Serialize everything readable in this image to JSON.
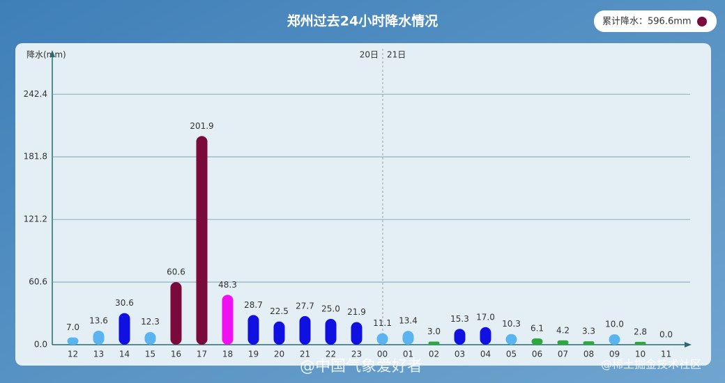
{
  "chart_data": {
    "type": "bar",
    "title": "郑州过去24小时降水情况",
    "total_label": "累计降水：596.6mm",
    "total_color": "#7a0a3c",
    "y_label": "降水(mm)",
    "annotations": [
      "20日",
      "21日"
    ],
    "watermarks": [
      "@中国气象爱好者",
      "@稀土掘金技术社区"
    ],
    "categories": [
      "12",
      "13",
      "14",
      "15",
      "16",
      "17",
      "18",
      "19",
      "20",
      "21",
      "22",
      "23",
      "00",
      "01",
      "02",
      "03",
      "04",
      "05",
      "06",
      "07",
      "08",
      "09",
      "10",
      "11"
    ],
    "values": [
      7.0,
      13.6,
      30.6,
      12.3,
      60.6,
      201.9,
      48.3,
      28.7,
      22.5,
      27.7,
      25.0,
      21.9,
      11.1,
      13.4,
      3.0,
      15.3,
      17.0,
      10.3,
      6.1,
      4.2,
      3.3,
      10.0,
      2.8,
      0
    ],
    "value_labels": [
      "7.0",
      "13.6",
      "30.6",
      "12.3",
      "60.6",
      "201.9",
      "48.3",
      "28.7",
      "22.5",
      "27.7",
      "25.0",
      "21.9",
      "11.1",
      "13.4",
      "3.0",
      "15.3",
      "17.0",
      "10.3",
      "6.1",
      "4.2",
      "3.3",
      "10.0",
      "2.8",
      "0.0"
    ],
    "colors": [
      "#5ab4f0",
      "#5ab4f0",
      "#1010e0",
      "#5ab4f0",
      "#7a0a3c",
      "#7a0a3c",
      "#f010f0",
      "#1010e0",
      "#1010e0",
      "#1010e0",
      "#1010e0",
      "#1010e0",
      "#5ab4f0",
      "#5ab4f0",
      "#2eaa3c",
      "#1010e0",
      "#1010e0",
      "#5ab4f0",
      "#2eaa3c",
      "#2eaa3c",
      "#2eaa3c",
      "#5ab4f0",
      "#2eaa3c",
      "#2eaa3c"
    ],
    "ylim": [
      0,
      283
    ],
    "yticks": [
      {
        "value": 0,
        "label": "0.0"
      },
      60.6,
      121.2,
      181.8,
      242.4
    ],
    "grid": true
  }
}
